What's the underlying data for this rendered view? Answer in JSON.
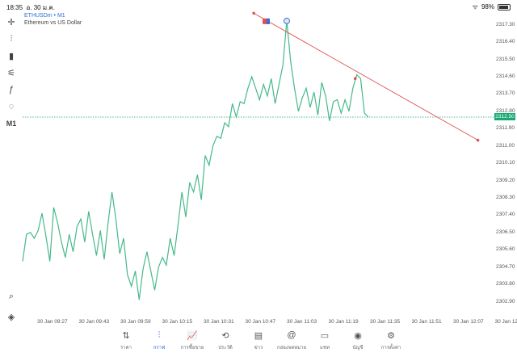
{
  "status_bar": {
    "time": "18:35",
    "date": "อ. 30 ม.ค.",
    "battery": "98%"
  },
  "chart_title": {
    "symbol": "ETHUSDm • M1",
    "description": "Ethereum vs US Dollar"
  },
  "toolbar": [
    {
      "name": "crosshair-icon",
      "glyph": "✛"
    },
    {
      "name": "candles-icon",
      "glyph": "⫶"
    },
    {
      "name": "volume-icon",
      "glyph": "▮"
    },
    {
      "name": "indicators-icon",
      "glyph": "⚟"
    },
    {
      "name": "function-icon",
      "glyph": "ƒ"
    },
    {
      "name": "shapes-icon",
      "glyph": "◌"
    },
    {
      "name": "timeframe",
      "glyph": "M1"
    }
  ],
  "current_price": "2312.50",
  "chart_data": {
    "type": "line",
    "series": [
      {
        "values": [
          2305.0,
          2306.4,
          2306.5,
          2306.2,
          2306.6,
          2307.5,
          2306.3,
          2305.0,
          2307.8,
          2307.0,
          2306.0,
          2305.2,
          2306.4,
          2305.5,
          2306.8,
          2307.2,
          2306.0,
          2307.6,
          2306.4,
          2305.3,
          2306.6,
          2305.1,
          2307.0,
          2308.6,
          2307.2,
          2305.4,
          2306.2,
          2304.3,
          2303.7,
          2304.5,
          2303.0,
          2304.6,
          2305.5,
          2304.5,
          2303.5,
          2304.7,
          2305.2,
          2304.8,
          2306.2,
          2305.3,
          2306.9,
          2308.6,
          2307.3,
          2309.1,
          2308.6,
          2309.5,
          2308.2,
          2310.5,
          2310.0,
          2311.0,
          2311.5,
          2311.4,
          2312.2,
          2312.0,
          2313.2,
          2312.5,
          2313.3,
          2313.2,
          2314.0,
          2314.6,
          2314.0,
          2313.4,
          2314.2,
          2313.6,
          2314.5,
          2313.2,
          2314.2,
          2315.2,
          2317.5,
          2315.4,
          2314.0,
          2312.8,
          2313.5,
          2314.0,
          2313.0,
          2313.8,
          2312.6,
          2314.3,
          2313.6,
          2312.3,
          2313.3,
          2313.4,
          2312.7,
          2313.4,
          2312.8,
          2314.0,
          2314.7,
          2314.5,
          2312.7,
          2312.5
        ]
      }
    ],
    "ylim": [
      2302.0,
      2318.0
    ],
    "y_ticks": [
      "2317.30",
      "2316.40",
      "2315.50",
      "2314.60",
      "2313.70",
      "2312.80",
      "2311.90",
      "2311.00",
      "2310.10",
      "2309.20",
      "2308.30",
      "2307.40",
      "2306.50",
      "2305.60",
      "2304.70",
      "2303.80",
      "2302.90"
    ],
    "x_ticks": [
      "30 Jan 09:27",
      "30 Jan 09:43",
      "30 Jan 09:59",
      "30 Jan 10:15",
      "30 Jan 10:31",
      "30 Jan 10:47",
      "30 Jan 11:03",
      "30 Jan 11:19",
      "30 Jan 11:35",
      "30 Jan 11:51",
      "30 Jan 12:07",
      "30 Jan 12"
    ],
    "current_price_level": 2312.5,
    "trendline": {
      "x1": 0.49,
      "y1": 2317.9,
      "x2": 0.965,
      "y2": 2311.3,
      "mid_x": 0.705,
      "mid_y": 2314.5
    },
    "colors": {
      "line": "#46b98a",
      "trendline": "#e05050",
      "current": "#18a874"
    }
  },
  "tabbar": [
    {
      "name": "tab-quotes",
      "icon": "⇅",
      "label": "ราคา",
      "active": false
    },
    {
      "name": "tab-chart",
      "icon": "⫶",
      "label": "กราฟ",
      "active": true
    },
    {
      "name": "tab-trade",
      "icon": "📈",
      "label": "การซื้อขาย",
      "active": false
    },
    {
      "name": "tab-history",
      "icon": "⟲",
      "label": "ประวัติ",
      "active": false
    },
    {
      "name": "tab-news",
      "icon": "▤",
      "label": "ข่าว",
      "active": false
    },
    {
      "name": "tab-mailbox",
      "icon": "@",
      "label": "กล่องจดหมาย",
      "active": false
    },
    {
      "name": "tab-chat",
      "icon": "▭",
      "label": "แชท",
      "active": false
    },
    {
      "name": "tab-accounts",
      "icon": "◉",
      "label": "บัญชี",
      "active": false
    },
    {
      "name": "tab-settings",
      "icon": "⚙",
      "label": "การตั้งค่า",
      "active": false
    }
  ]
}
